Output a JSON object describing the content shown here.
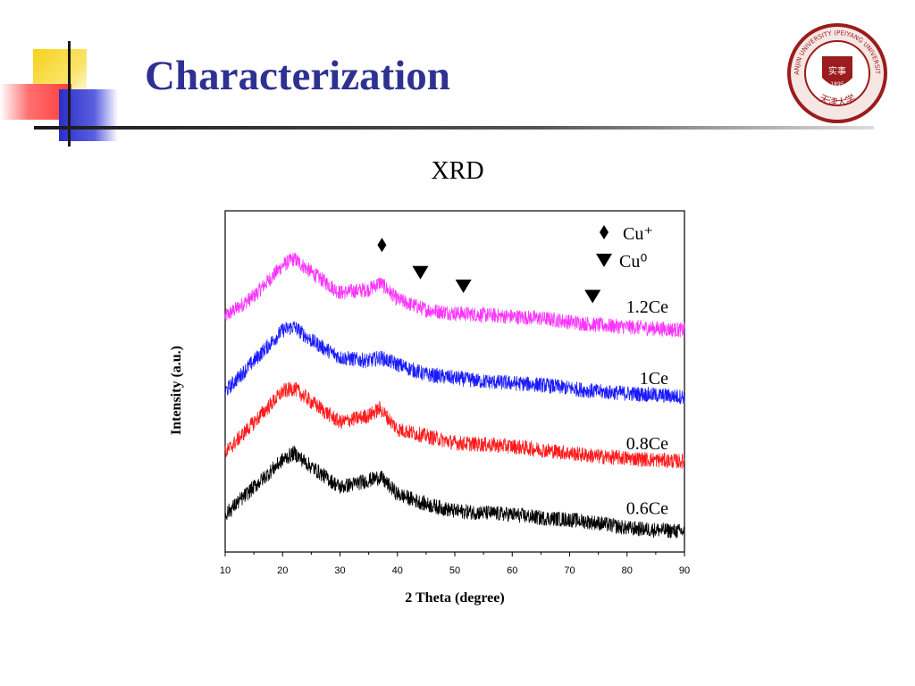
{
  "slide": {
    "title": "Characterization"
  },
  "logo": {
    "name": "university-seal",
    "text_outer": "TIANJIN UNIVERSITY (PEIYANG UNIVERSITY)",
    "text_inner": "天津大学",
    "year": "1895",
    "colors": {
      "ring": "#9b1c1c",
      "fill": "#f6e7e4"
    }
  },
  "chart_data": {
    "type": "line",
    "title": "XRD",
    "xlabel": "2 Theta (degree)",
    "ylabel": "Intensity (a.u.)",
    "xlim": [
      10,
      90
    ],
    "ylim": [
      0,
      1
    ],
    "x_ticks": [
      "10",
      "20",
      "30",
      "40",
      "50",
      "60",
      "70",
      "80",
      "90"
    ],
    "y_ticks_shown": false,
    "grid": false,
    "legend": {
      "position": "top-right",
      "entries": [
        {
          "symbol": "diamond",
          "label": "Cu⁺"
        },
        {
          "symbol": "triangle-down",
          "label": "Cu⁰"
        }
      ]
    },
    "markers": [
      {
        "symbol": "diamond",
        "x": 37.3,
        "y": 0.9
      },
      {
        "symbol": "triangle-down",
        "x": 44.0,
        "y": 0.82
      },
      {
        "symbol": "triangle-down",
        "x": 51.5,
        "y": 0.78
      },
      {
        "symbol": "triangle-down",
        "x": 74.0,
        "y": 0.75
      }
    ],
    "series": [
      {
        "name": "1.2Ce",
        "color": "#ff33ff",
        "x": [
          10,
          15,
          20,
          22,
          25,
          30,
          35,
          37,
          40,
          45,
          50,
          55,
          60,
          65,
          70,
          75,
          80,
          85,
          90
        ],
        "y": [
          0.69,
          0.75,
          0.84,
          0.86,
          0.82,
          0.76,
          0.77,
          0.79,
          0.74,
          0.71,
          0.7,
          0.695,
          0.69,
          0.685,
          0.675,
          0.665,
          0.66,
          0.655,
          0.65
        ]
      },
      {
        "name": "1Ce",
        "color": "#1a1aff",
        "x": [
          10,
          15,
          20,
          22,
          25,
          30,
          35,
          37,
          40,
          45,
          50,
          55,
          60,
          65,
          70,
          75,
          80,
          85,
          90
        ],
        "y": [
          0.47,
          0.56,
          0.65,
          0.66,
          0.62,
          0.57,
          0.56,
          0.57,
          0.55,
          0.52,
          0.51,
          0.5,
          0.495,
          0.49,
          0.48,
          0.47,
          0.465,
          0.46,
          0.455
        ]
      },
      {
        "name": "0.8Ce",
        "color": "#ff1a1a",
        "x": [
          10,
          15,
          20,
          22,
          25,
          30,
          35,
          37,
          40,
          45,
          50,
          55,
          60,
          65,
          70,
          75,
          80,
          85,
          90
        ],
        "y": [
          0.29,
          0.38,
          0.47,
          0.48,
          0.44,
          0.38,
          0.4,
          0.42,
          0.36,
          0.34,
          0.32,
          0.315,
          0.31,
          0.3,
          0.29,
          0.28,
          0.275,
          0.27,
          0.265
        ]
      },
      {
        "name": "0.6Ce",
        "color": "#000000",
        "x": [
          10,
          15,
          20,
          22,
          25,
          30,
          35,
          37,
          40,
          45,
          50,
          55,
          60,
          65,
          70,
          75,
          80,
          85,
          90
        ],
        "y": [
          0.11,
          0.19,
          0.27,
          0.29,
          0.25,
          0.19,
          0.21,
          0.22,
          0.17,
          0.14,
          0.12,
          0.115,
          0.11,
          0.1,
          0.095,
          0.085,
          0.07,
          0.065,
          0.06
        ]
      }
    ],
    "series_label_positions": [
      {
        "name": "1.2Ce",
        "x": 81,
        "y": 0.72
      },
      {
        "name": "1Ce",
        "x": 81,
        "y": 0.51
      },
      {
        "name": "0.8Ce",
        "x": 81,
        "y": 0.32
      },
      {
        "name": "0.6Ce",
        "x": 81,
        "y": 0.13
      }
    ]
  }
}
